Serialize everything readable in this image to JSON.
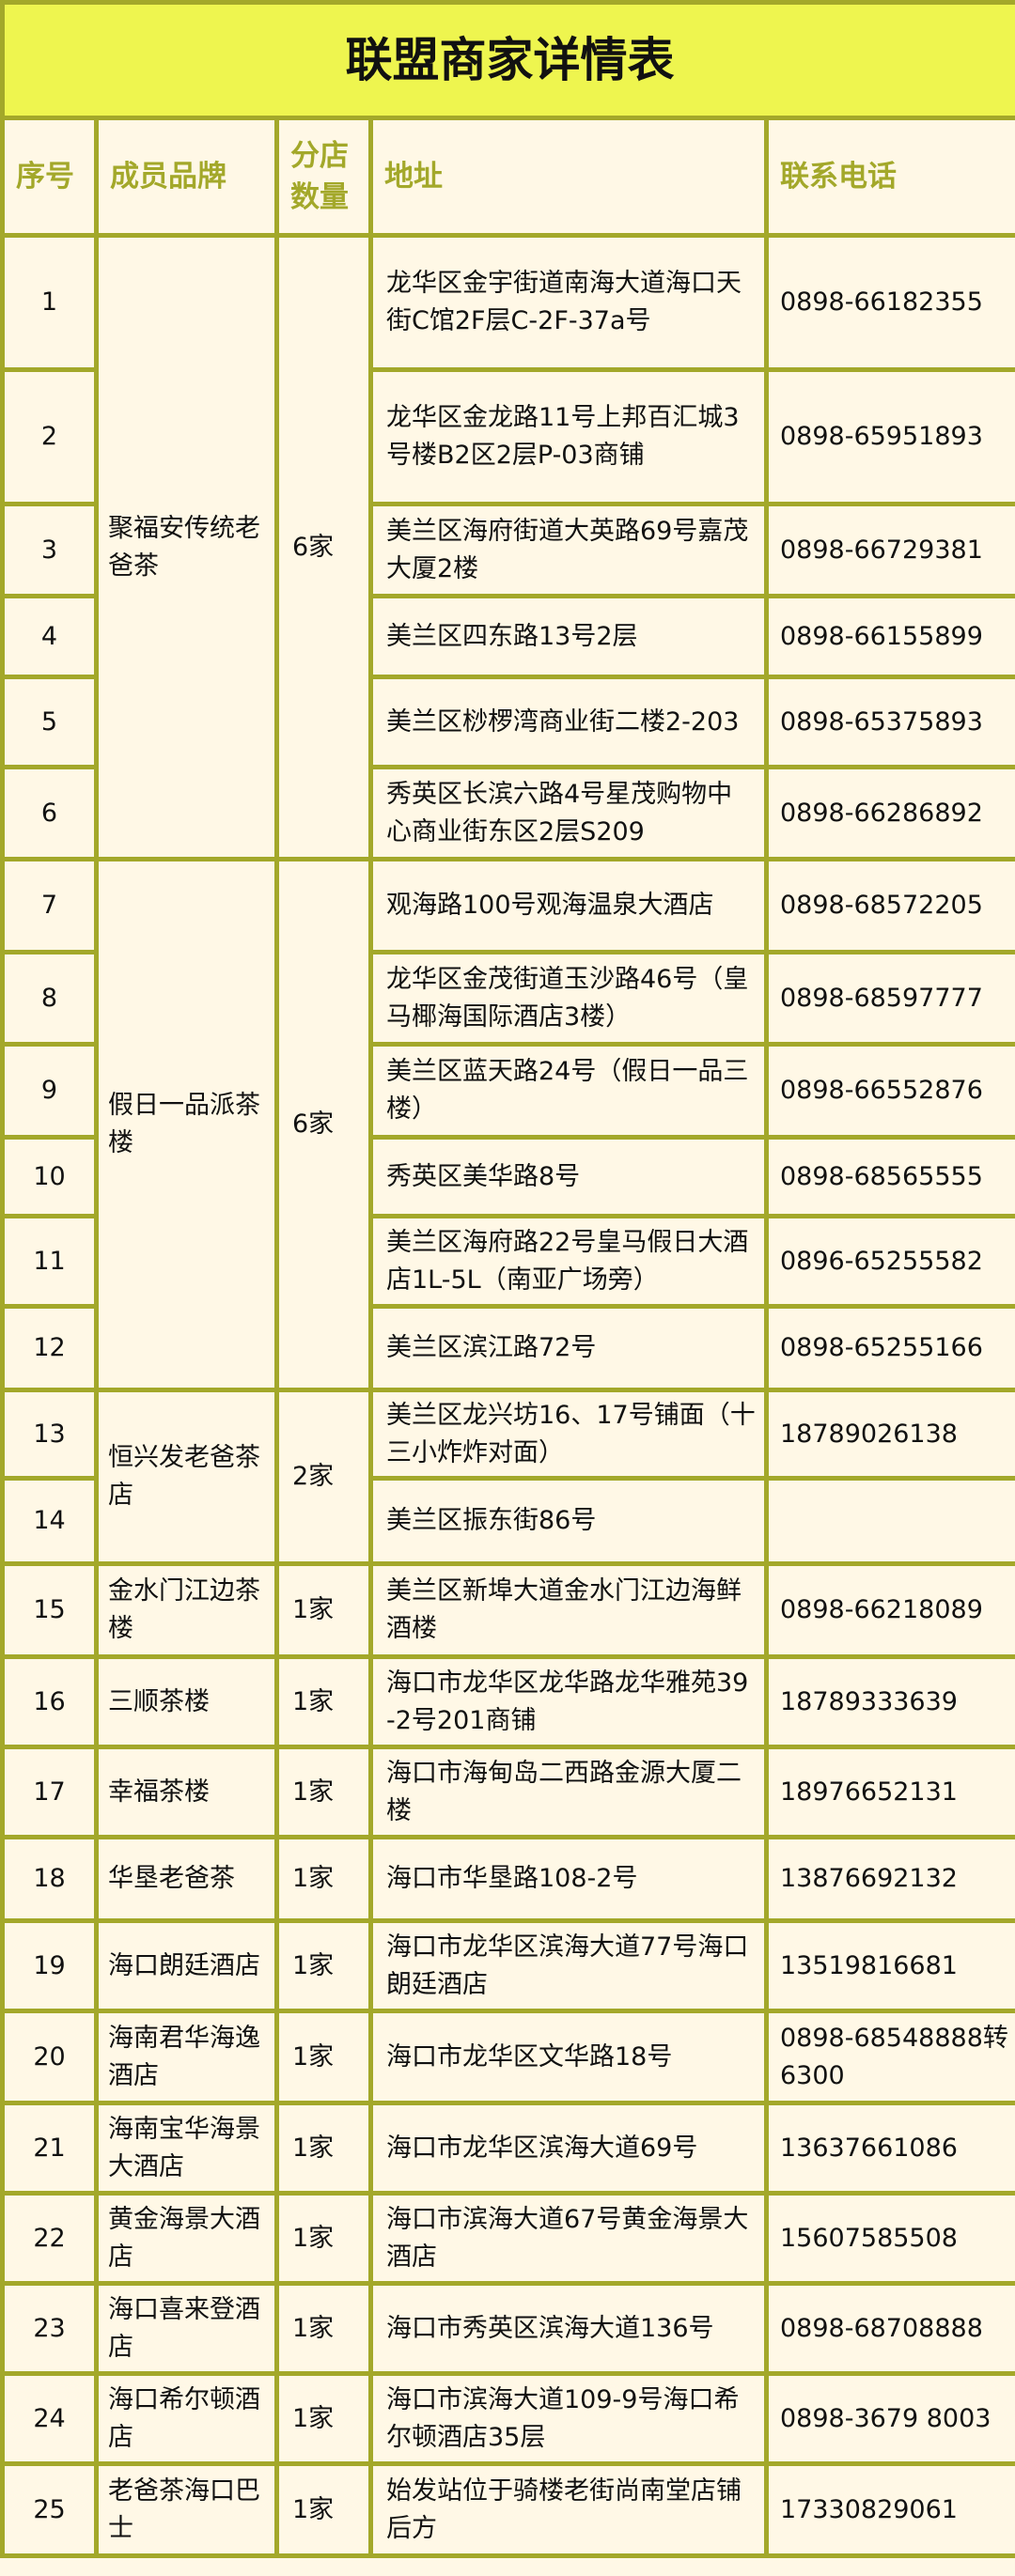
{
  "title": "联盟商家详情表",
  "colors": {
    "title_bg": "#eef54f",
    "border": "#a3a82a",
    "body_bg": "#fff8e6",
    "header_text": "#a3a82a"
  },
  "headers": [
    "序号",
    "成员品牌",
    "分店数量",
    "地址",
    "联系电话"
  ],
  "groups": [
    {
      "brand": "聚福安传统老爸茶",
      "count": "6家",
      "rows": [
        {
          "num": "1",
          "address": "龙华区金宇街道南海大道海口天街C馆2F层C-2F-37a号",
          "phone": "0898-66182355"
        },
        {
          "num": "2",
          "address": "龙华区金龙路11号上邦百汇城3号楼B2区2层P-03商铺",
          "phone": "0898-65951893"
        },
        {
          "num": "3",
          "address": "美兰区海府街道大英路69号嘉茂大厦2楼",
          "phone": "0898-66729381"
        },
        {
          "num": "4",
          "address": "美兰区四东路13号2层",
          "phone": "0898-66155899"
        },
        {
          "num": "5",
          "address": "美兰区桫椤湾商业街二楼2-203",
          "phone": "0898-65375893"
        },
        {
          "num": "6",
          "address": "秀英区长滨六路4号星茂购物中心商业街东区2层S209",
          "phone": "0898-66286892"
        }
      ]
    },
    {
      "brand": "假日一品派茶楼",
      "count": "6家",
      "rows": [
        {
          "num": "7",
          "address": "观海路100号观海温泉大酒店",
          "phone": "0898-68572205"
        },
        {
          "num": "8",
          "address": "龙华区金茂街道玉沙路46号（皇马椰海国际酒店3楼）",
          "phone": "0898-68597777"
        },
        {
          "num": "9",
          "address": "美兰区蓝天路24号（假日一品三楼）",
          "phone": "0898-66552876"
        },
        {
          "num": "10",
          "address": "秀英区美华路8号",
          "phone": "0898-68565555"
        },
        {
          "num": "11",
          "address": "美兰区海府路22号皇马假日大酒店1L-5L（南亚广场旁）",
          "phone": "0896-65255582"
        },
        {
          "num": "12",
          "address": "美兰区滨江路72号",
          "phone": "0898-65255166"
        }
      ]
    },
    {
      "brand": "恒兴发老爸茶店",
      "count": "2家",
      "rows": [
        {
          "num": "13",
          "address": "美兰区龙兴坊16、17号铺面（十三小炸炸对面）",
          "phone": "18789026138"
        },
        {
          "num": "14",
          "address": "美兰区振东街86号",
          "phone": ""
        }
      ]
    },
    {
      "brand": "金水门江边茶楼",
      "count": "1家",
      "rows": [
        {
          "num": "15",
          "address": "美兰区新埠大道金水门江边海鲜酒楼",
          "phone": "0898-66218089"
        }
      ]
    },
    {
      "brand": "三顺茶楼",
      "count": "1家",
      "rows": [
        {
          "num": "16",
          "address": "海口市龙华区龙华路龙华雅苑39-2号201商铺",
          "phone": "18789333639"
        }
      ]
    },
    {
      "brand": "幸福茶楼",
      "count": "1家",
      "rows": [
        {
          "num": "17",
          "address": "海口市海甸岛二西路金源大厦二楼",
          "phone": "18976652131"
        }
      ]
    },
    {
      "brand": "华垦老爸茶",
      "count": "1家",
      "rows": [
        {
          "num": "18",
          "address": "海口市华垦路108-2号",
          "phone": "13876692132"
        }
      ]
    },
    {
      "brand": "海口朗廷酒店",
      "count": "1家",
      "rows": [
        {
          "num": "19",
          "address": "海口市龙华区滨海大道77号海口朗廷酒店",
          "phone": "13519816681"
        }
      ]
    },
    {
      "brand": "海南君华海逸酒店",
      "count": "1家",
      "rows": [
        {
          "num": "20",
          "address": "海口市龙华区文华路18号",
          "phone": "0898-68548888转6300"
        }
      ]
    },
    {
      "brand": "海南宝华海景大酒店",
      "count": "1家",
      "rows": [
        {
          "num": "21",
          "address": "海口市龙华区滨海大道69号",
          "phone": "13637661086"
        }
      ]
    },
    {
      "brand": "黄金海景大酒店",
      "count": "1家",
      "rows": [
        {
          "num": "22",
          "address": "海口市滨海大道67号黄金海景大酒店",
          "phone": "15607585508"
        }
      ]
    },
    {
      "brand": "海口喜来登酒店",
      "count": "1家",
      "rows": [
        {
          "num": "23",
          "address": "海口市秀英区滨海大道136号",
          "phone": "0898-68708888"
        }
      ]
    },
    {
      "brand": "海口希尔顿酒店",
      "count": "1家",
      "rows": [
        {
          "num": "24",
          "address": "海口市滨海大道109-9号海口希尔顿酒店35层",
          "phone": "0898-3679 8003"
        }
      ]
    },
    {
      "brand": "老爸茶海口巴士",
      "count": "1家",
      "rows": [
        {
          "num": "25",
          "address": "始发站位于骑楼老街尚南堂店铺后方",
          "phone": "17330829061"
        }
      ]
    }
  ]
}
